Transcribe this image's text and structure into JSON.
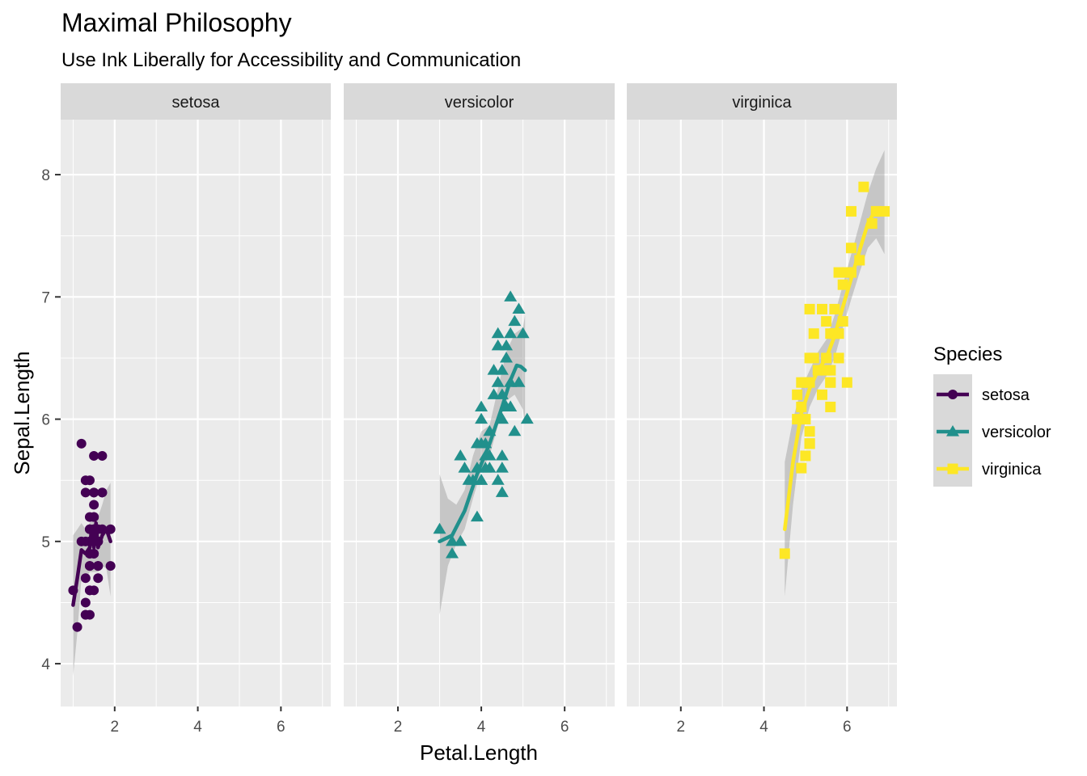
{
  "chart_data": {
    "type": "scatter",
    "title": "Maximal Philosophy",
    "subtitle": "Use Ink Liberally for Accessibility and Communication",
    "xlabel": "Petal.Length",
    "ylabel": "Sepal.Length",
    "xlim": [
      0.7,
      7.2
    ],
    "ylim": [
      3.65,
      8.45
    ],
    "x_ticks": [
      2,
      4,
      6
    ],
    "y_ticks": [
      4,
      5,
      6,
      7,
      8
    ],
    "x_tick_labels": [
      "2",
      "4",
      "6"
    ],
    "y_tick_labels": [
      "4",
      "5",
      "6",
      "7",
      "8"
    ],
    "grid": true,
    "facet_by": "Species",
    "legend": {
      "title": "Species",
      "position": "right",
      "entries": [
        "setosa",
        "versicolor",
        "virginica"
      ]
    },
    "series": [
      {
        "name": "setosa",
        "color": "#440154",
        "marker": "circle",
        "points": [
          [
            1.4,
            5.1
          ],
          [
            1.4,
            4.9
          ],
          [
            1.3,
            4.7
          ],
          [
            1.5,
            4.6
          ],
          [
            1.4,
            5.0
          ],
          [
            1.7,
            5.4
          ],
          [
            1.4,
            4.6
          ],
          [
            1.5,
            5.0
          ],
          [
            1.4,
            4.4
          ],
          [
            1.5,
            4.9
          ],
          [
            1.5,
            5.4
          ],
          [
            1.6,
            4.8
          ],
          [
            1.4,
            4.8
          ],
          [
            1.1,
            4.3
          ],
          [
            1.2,
            5.8
          ],
          [
            1.5,
            5.7
          ],
          [
            1.3,
            5.4
          ],
          [
            1.4,
            5.1
          ],
          [
            1.7,
            5.7
          ],
          [
            1.5,
            5.1
          ],
          [
            1.7,
            5.4
          ],
          [
            1.5,
            5.1
          ],
          [
            1.0,
            4.6
          ],
          [
            1.7,
            5.1
          ],
          [
            1.9,
            4.8
          ],
          [
            1.6,
            5.0
          ],
          [
            1.6,
            5.0
          ],
          [
            1.5,
            5.2
          ],
          [
            1.4,
            5.2
          ],
          [
            1.6,
            4.7
          ],
          [
            1.6,
            4.8
          ],
          [
            1.5,
            5.4
          ],
          [
            1.5,
            5.2
          ],
          [
            1.4,
            5.5
          ],
          [
            1.5,
            4.9
          ],
          [
            1.2,
            5.0
          ],
          [
            1.3,
            5.5
          ],
          [
            1.4,
            4.9
          ],
          [
            1.3,
            4.4
          ],
          [
            1.5,
            5.1
          ],
          [
            1.3,
            5.0
          ],
          [
            1.3,
            4.5
          ],
          [
            1.3,
            4.4
          ],
          [
            1.6,
            5.0
          ],
          [
            1.9,
            5.1
          ],
          [
            1.4,
            4.8
          ],
          [
            1.6,
            5.1
          ],
          [
            1.4,
            4.6
          ],
          [
            1.5,
            5.3
          ],
          [
            1.4,
            5.0
          ]
        ],
        "smooth": [
          [
            1.0,
            4.48
          ],
          [
            1.1,
            4.7
          ],
          [
            1.2,
            4.93
          ],
          [
            1.3,
            4.9
          ],
          [
            1.4,
            4.95
          ],
          [
            1.45,
            5.12
          ],
          [
            1.5,
            4.95
          ],
          [
            1.55,
            5.15
          ],
          [
            1.6,
            4.95
          ],
          [
            1.7,
            5.05
          ],
          [
            1.8,
            5.1
          ],
          [
            1.9,
            5.0
          ]
        ],
        "band": [
          [
            1.0,
            3.9,
            5.05
          ],
          [
            1.1,
            4.25,
            5.1
          ],
          [
            1.2,
            4.7,
            5.15
          ],
          [
            1.3,
            4.7,
            5.1
          ],
          [
            1.4,
            4.75,
            5.15
          ],
          [
            1.5,
            4.75,
            5.2
          ],
          [
            1.6,
            4.75,
            5.2
          ],
          [
            1.7,
            4.8,
            5.3
          ],
          [
            1.8,
            4.78,
            5.42
          ],
          [
            1.9,
            4.55,
            5.48
          ]
        ]
      },
      {
        "name": "versicolor",
        "color": "#21908C",
        "marker": "triangle",
        "points": [
          [
            4.7,
            7.0
          ],
          [
            4.5,
            6.4
          ],
          [
            4.9,
            6.9
          ],
          [
            4.0,
            5.5
          ],
          [
            4.6,
            6.5
          ],
          [
            4.5,
            5.7
          ],
          [
            4.7,
            6.3
          ],
          [
            3.3,
            4.9
          ],
          [
            4.6,
            6.6
          ],
          [
            3.9,
            5.2
          ],
          [
            3.5,
            5.0
          ],
          [
            4.2,
            5.9
          ],
          [
            4.0,
            6.0
          ],
          [
            4.7,
            6.1
          ],
          [
            3.6,
            5.6
          ],
          [
            4.4,
            6.7
          ],
          [
            4.5,
            5.6
          ],
          [
            4.1,
            5.8
          ],
          [
            4.5,
            6.2
          ],
          [
            3.9,
            5.6
          ],
          [
            4.8,
            5.9
          ],
          [
            4.0,
            6.1
          ],
          [
            4.9,
            6.3
          ],
          [
            4.7,
            6.1
          ],
          [
            4.3,
            6.4
          ],
          [
            4.4,
            6.6
          ],
          [
            4.8,
            6.8
          ],
          [
            5.0,
            6.7
          ],
          [
            4.5,
            6.0
          ],
          [
            3.5,
            5.7
          ],
          [
            3.8,
            5.5
          ],
          [
            3.7,
            5.5
          ],
          [
            3.9,
            5.8
          ],
          [
            5.1,
            6.0
          ],
          [
            4.5,
            5.4
          ],
          [
            4.5,
            6.0
          ],
          [
            4.7,
            6.7
          ],
          [
            4.4,
            6.3
          ],
          [
            4.1,
            5.6
          ],
          [
            4.0,
            5.5
          ],
          [
            4.4,
            5.5
          ],
          [
            4.6,
            6.1
          ],
          [
            4.0,
            5.8
          ],
          [
            3.3,
            5.0
          ],
          [
            4.2,
            5.6
          ],
          [
            4.2,
            5.7
          ],
          [
            4.2,
            5.7
          ],
          [
            4.3,
            6.2
          ],
          [
            3.0,
            5.1
          ],
          [
            4.1,
            5.7
          ]
        ],
        "smooth": [
          [
            3.0,
            5.0
          ],
          [
            3.3,
            5.05
          ],
          [
            3.6,
            5.25
          ],
          [
            3.9,
            5.55
          ],
          [
            4.2,
            5.8
          ],
          [
            4.5,
            6.1
          ],
          [
            4.7,
            6.32
          ],
          [
            4.85,
            6.44
          ],
          [
            4.95,
            6.43
          ],
          [
            5.05,
            6.4
          ]
        ],
        "band": [
          [
            3.0,
            4.4,
            5.55
          ],
          [
            3.2,
            4.8,
            5.35
          ],
          [
            3.4,
            4.98,
            5.3
          ],
          [
            3.6,
            5.1,
            5.42
          ],
          [
            3.8,
            5.35,
            5.7
          ],
          [
            4.0,
            5.58,
            5.9
          ],
          [
            4.2,
            5.7,
            5.95
          ],
          [
            4.4,
            5.95,
            6.25
          ],
          [
            4.6,
            6.15,
            6.55
          ],
          [
            4.8,
            6.2,
            6.7
          ],
          [
            5.0,
            6.08,
            6.75
          ],
          [
            5.05,
            5.95,
            6.85
          ]
        ]
      },
      {
        "name": "virginica",
        "color": "#FDE725",
        "marker": "square",
        "points": [
          [
            6.0,
            6.3
          ],
          [
            5.1,
            5.8
          ],
          [
            5.9,
            7.1
          ],
          [
            5.6,
            6.3
          ],
          [
            5.8,
            6.5
          ],
          [
            6.6,
            7.6
          ],
          [
            4.5,
            4.9
          ],
          [
            6.3,
            7.3
          ],
          [
            5.8,
            6.7
          ],
          [
            6.1,
            7.2
          ],
          [
            5.1,
            6.5
          ],
          [
            5.3,
            6.4
          ],
          [
            5.5,
            6.8
          ],
          [
            5.0,
            5.7
          ],
          [
            5.1,
            5.8
          ],
          [
            5.3,
            6.4
          ],
          [
            5.5,
            6.5
          ],
          [
            6.7,
            7.7
          ],
          [
            6.9,
            7.7
          ],
          [
            5.0,
            6.0
          ],
          [
            5.7,
            6.9
          ],
          [
            4.9,
            5.6
          ],
          [
            6.7,
            7.7
          ],
          [
            4.9,
            6.3
          ],
          [
            5.7,
            6.7
          ],
          [
            6.0,
            7.2
          ],
          [
            4.8,
            6.2
          ],
          [
            4.9,
            6.1
          ],
          [
            5.6,
            6.4
          ],
          [
            5.8,
            7.2
          ],
          [
            6.1,
            7.4
          ],
          [
            6.4,
            7.9
          ],
          [
            5.6,
            6.4
          ],
          [
            5.1,
            6.3
          ],
          [
            5.6,
            6.1
          ],
          [
            6.1,
            7.7
          ],
          [
            5.6,
            6.3
          ],
          [
            5.5,
            6.4
          ],
          [
            4.8,
            6.0
          ],
          [
            5.4,
            6.9
          ],
          [
            5.6,
            6.7
          ],
          [
            5.1,
            6.9
          ],
          [
            5.1,
            5.8
          ],
          [
            5.9,
            6.8
          ],
          [
            5.7,
            6.7
          ],
          [
            5.2,
            6.7
          ],
          [
            5.0,
            6.3
          ],
          [
            5.2,
            6.5
          ],
          [
            5.4,
            6.2
          ],
          [
            5.1,
            5.9
          ]
        ],
        "smooth": [
          [
            4.5,
            5.1
          ],
          [
            4.7,
            5.65
          ],
          [
            4.9,
            6.05
          ],
          [
            5.1,
            6.25
          ],
          [
            5.3,
            6.4
          ],
          [
            5.5,
            6.5
          ],
          [
            5.7,
            6.68
          ],
          [
            5.9,
            6.92
          ],
          [
            6.1,
            7.15
          ],
          [
            6.3,
            7.38
          ],
          [
            6.5,
            7.6
          ],
          [
            6.7,
            7.72
          ],
          [
            6.9,
            7.72
          ]
        ],
        "band": [
          [
            4.5,
            4.55,
            5.65
          ],
          [
            4.7,
            5.3,
            6.0
          ],
          [
            4.9,
            5.85,
            6.25
          ],
          [
            5.1,
            6.1,
            6.4
          ],
          [
            5.3,
            6.25,
            6.55
          ],
          [
            5.5,
            6.35,
            6.65
          ],
          [
            5.7,
            6.5,
            6.85
          ],
          [
            5.9,
            6.75,
            7.1
          ],
          [
            6.1,
            6.98,
            7.35
          ],
          [
            6.3,
            7.2,
            7.6
          ],
          [
            6.5,
            7.4,
            7.85
          ],
          [
            6.7,
            7.48,
            8.05
          ],
          [
            6.9,
            7.35,
            8.2
          ]
        ]
      }
    ]
  }
}
